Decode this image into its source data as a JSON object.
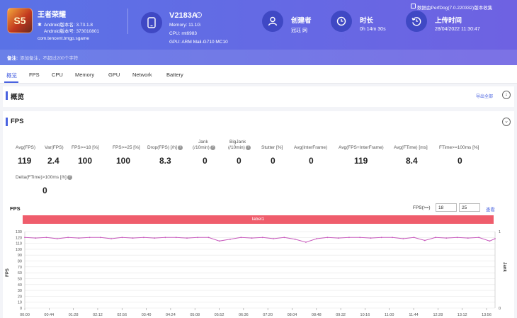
{
  "app": {
    "name": "王者荣耀",
    "icon_glyph": "S5",
    "android_version": "Android版本名: 3.73.1.8",
    "android_code": "Android版本号: 373010801",
    "package": "com.tencent.tmgp.sgame"
  },
  "device": {
    "model": "V2183A",
    "memory": "Memory: 11.1G",
    "cpu": "CPU: mt6983",
    "gpu": "GPU: ARM Mali-G710 MC10"
  },
  "creator": {
    "label": "创建者",
    "value": "冠珏 网"
  },
  "duration": {
    "label": "时长",
    "value": "0h 14m 30s"
  },
  "upload": {
    "label": "上传时间",
    "value": "28/04/2022 11:30:47"
  },
  "export_note": "数据由PerfDog(7.0.220332)版本收集",
  "note": {
    "label": "备注:",
    "placeholder": "添加备注，不超过200个字符"
  },
  "tabs": [
    {
      "label": "概览",
      "active": true
    },
    {
      "label": "FPS"
    },
    {
      "label": "CPU"
    },
    {
      "label": "Memory"
    },
    {
      "label": "GPU"
    },
    {
      "label": "Network"
    },
    {
      "label": "Battery"
    }
  ],
  "overview": {
    "title": "概览",
    "export_all": "导出全部"
  },
  "fps_section": {
    "title": "FPS",
    "stats_row1": [
      {
        "label": "Avg(FPS)",
        "value": "119"
      },
      {
        "label": "Var(FPS)",
        "value": "2.4"
      },
      {
        "label": "FPS>=18 [%]",
        "value": "100"
      },
      {
        "label": "FPS>=25 [%]",
        "value": "100"
      },
      {
        "label": "Drop(FPS) [/h]",
        "value": "8.3"
      },
      {
        "label": "Jank",
        "label2": "(/10min)",
        "value": "0"
      },
      {
        "label": "BigJank",
        "label2": "(/10min)",
        "value": "0"
      },
      {
        "label": "Stutter [%]",
        "value": "0"
      },
      {
        "label": "Avg(InterFrame)",
        "value": "0"
      },
      {
        "label": "Avg(FPS+InterFrame)",
        "value": "119"
      },
      {
        "label": "Avg(FTime) [ms]",
        "value": "8.4"
      },
      {
        "label": "FTime>=100ms [%]",
        "value": "0"
      }
    ],
    "stats_row2": [
      {
        "label": "Delta(FTime)>100ms [/h]",
        "value": "0"
      }
    ]
  },
  "chart": {
    "title": "FPS",
    "threshold_label": "FPS(>=)",
    "threshold_1": "18",
    "threshold_2": "25",
    "query_label": "查看",
    "band_label": "label1",
    "y_left_label": "FPS",
    "y_right_label": "Jank",
    "colors": {
      "fps": "#c85bbd",
      "band": "#ef5d6c",
      "grid": "#e6e6e6"
    }
  },
  "chart_data": {
    "type": "line",
    "title": "FPS",
    "xlabel": "",
    "ylabel": "FPS",
    "y2label": "Jank",
    "ylim": [
      0,
      130
    ],
    "y2lim": [
      0,
      1
    ],
    "yticks": [
      0,
      10,
      20,
      30,
      40,
      50,
      60,
      70,
      80,
      90,
      100,
      110,
      120,
      130
    ],
    "y2ticks": [
      0,
      1
    ],
    "x_ticks": [
      "00:00",
      "00:44",
      "01:28",
      "02:12",
      "02:56",
      "03:40",
      "04:24",
      "05:08",
      "05:52",
      "06:36",
      "07:20",
      "08:04",
      "08:48",
      "09:32",
      "10:16",
      "11:00",
      "11:44",
      "12:28",
      "13:12",
      "13:56"
    ],
    "x_range_seconds": [
      0,
      870
    ],
    "series": [
      {
        "name": "FPS",
        "baseline": 120,
        "points": [
          [
            0,
            120
          ],
          [
            20,
            119
          ],
          [
            40,
            120
          ],
          [
            60,
            118
          ],
          [
            80,
            120
          ],
          [
            100,
            119
          ],
          [
            120,
            120
          ],
          [
            140,
            120
          ],
          [
            160,
            118
          ],
          [
            180,
            120
          ],
          [
            200,
            119
          ],
          [
            220,
            120
          ],
          [
            240,
            119
          ],
          [
            260,
            120
          ],
          [
            280,
            120
          ],
          [
            300,
            119
          ],
          [
            320,
            120
          ],
          [
            340,
            120
          ],
          [
            360,
            114
          ],
          [
            380,
            117
          ],
          [
            400,
            120
          ],
          [
            420,
            119
          ],
          [
            440,
            120
          ],
          [
            460,
            118
          ],
          [
            480,
            120
          ],
          [
            500,
            117
          ],
          [
            520,
            112
          ],
          [
            540,
            118
          ],
          [
            560,
            120
          ],
          [
            580,
            119
          ],
          [
            600,
            120
          ],
          [
            620,
            120
          ],
          [
            640,
            119
          ],
          [
            660,
            120
          ],
          [
            680,
            120
          ],
          [
            700,
            118
          ],
          [
            720,
            120
          ],
          [
            740,
            115
          ],
          [
            760,
            120
          ],
          [
            780,
            119
          ],
          [
            800,
            120
          ],
          [
            820,
            119
          ],
          [
            840,
            120
          ],
          [
            860,
            114
          ],
          [
            870,
            118
          ]
        ]
      }
    ],
    "grid": true
  }
}
